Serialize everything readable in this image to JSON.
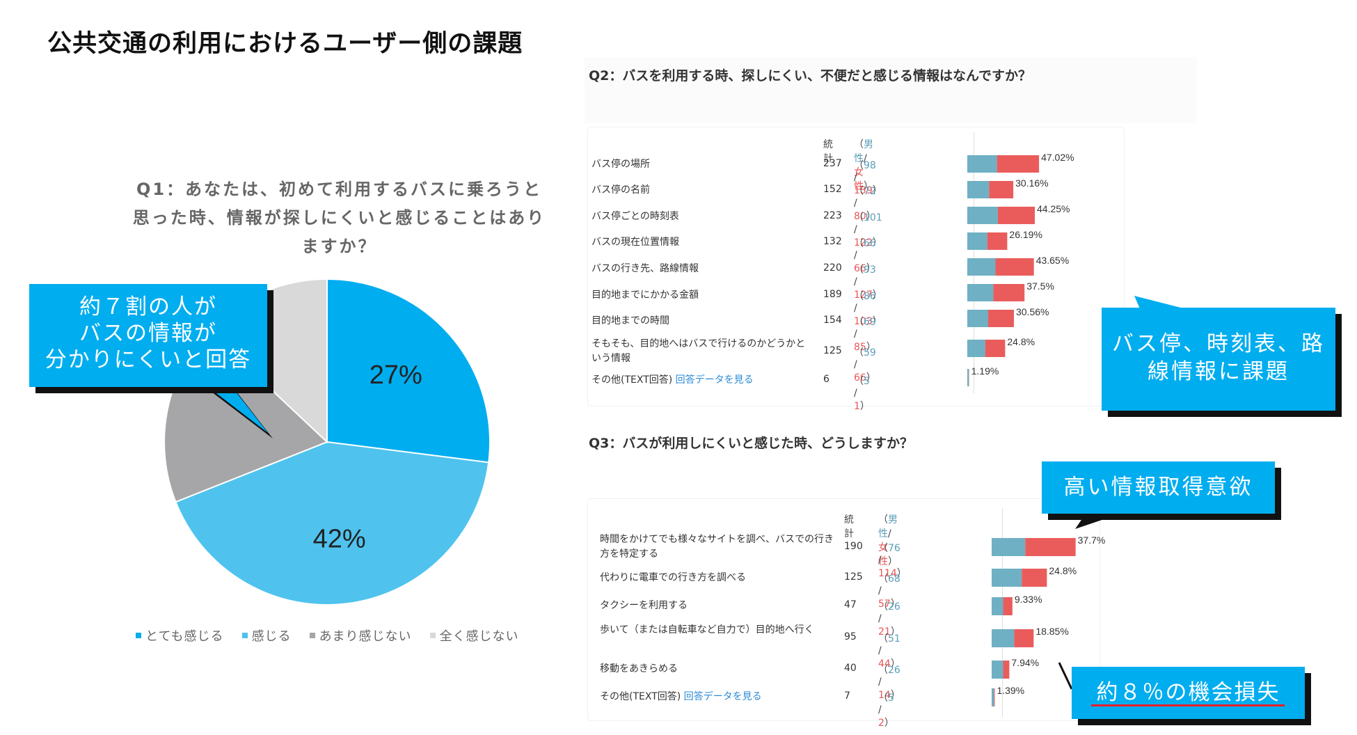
{
  "page": {
    "title": "公共交通の利用におけるユーザー側の課題"
  },
  "q1": {
    "question": "Q1：あなたは、初めて利用するバスに乗ろうと思った時、情報が探しにくいと感じることはありますか？",
    "legend": [
      "とても感じる",
      "感じる",
      "あまり感じない",
      "全く感じない"
    ]
  },
  "q2": {
    "question": "Q2：バスを利用する時、探しにくい、不便だと感じる情報はなんですか？",
    "header": {
      "count": "統計",
      "gender_open": "（",
      "male": "男性",
      "slash": "/",
      "female": "女性",
      "gender_close": "）"
    },
    "rows": [
      {
        "label": "バス停の場所",
        "count": "237",
        "male": "98",
        "female": "139",
        "pct": "47.02%"
      },
      {
        "label": "バス停の名前",
        "count": "152",
        "male": "72",
        "female": "80",
        "pct": "30.16%"
      },
      {
        "label": "バス停ごとの時刻表",
        "count": "223",
        "male": "101",
        "female": "122",
        "pct": "44.25%"
      },
      {
        "label": "バスの現在位置情報",
        "count": "132",
        "male": "66",
        "female": "66",
        "pct": "26.19%"
      },
      {
        "label": "バスの行き先、路線情報",
        "count": "220",
        "male": "93",
        "female": "127",
        "pct": "43.65%"
      },
      {
        "label": "目的地までにかかる金額",
        "count": "189",
        "male": "86",
        "female": "103",
        "pct": "37.5%"
      },
      {
        "label": "目的地までの時間",
        "count": "154",
        "male": "69",
        "female": "85",
        "pct": "30.56%"
      },
      {
        "label": "そもそも、目的地へはバスで行けるのかどうかという情報",
        "count": "125",
        "male": "59",
        "female": "66",
        "pct": "24.8%"
      },
      {
        "label": "その他(TEXT回答)",
        "link": "回答データを見る",
        "count": "6",
        "male": "5",
        "female": "1",
        "pct": "1.19%"
      }
    ]
  },
  "q3": {
    "question": "Q3：バスが利用しにくいと感じた時、どうしますか？",
    "header": {
      "count": "統計",
      "gender_open": "（",
      "male": "男性",
      "slash": "/",
      "female": "女性",
      "gender_close": "）"
    },
    "rows": [
      {
        "label": "時間をかけてでも様々なサイトを調べ、バスでの行き方を特定する",
        "count": "190",
        "male": "76",
        "female": "114",
        "pct": "37.7%"
      },
      {
        "label": "代わりに電車での行き方を調べる",
        "count": "125",
        "male": "68",
        "female": "57",
        "pct": "24.8%"
      },
      {
        "label": "タクシーを利用する",
        "count": "47",
        "male": "26",
        "female": "21",
        "pct": "9.33%"
      },
      {
        "label": "歩いて（または自転車など自力で）目的地へ行く",
        "count": "95",
        "male": "51",
        "female": "44",
        "pct": "18.85%"
      },
      {
        "label": "移動をあきらめる",
        "count": "40",
        "male": "26",
        "female": "14",
        "pct": "7.94%"
      },
      {
        "label": "その他(TEXT回答)",
        "link": "回答データを見る",
        "count": "7",
        "male": "5",
        "female": "2",
        "pct": "1.39%"
      }
    ]
  },
  "callouts": {
    "seventy_percent": "約７割の人が\nバスの情報が\n分かりにくいと回答",
    "bus_stop": "バス停、時刻表、路\n線情報に課題",
    "high_motivation": "高い情報取得意欲",
    "loss": "約８％の機会損失"
  },
  "colors": {
    "male_bar": "#6fb0c4",
    "female_bar": "#ea5c5c",
    "callout": "#00adef",
    "pie_very": "#00adef",
    "pie_feel": "#4fc3ee",
    "pie_notmuch": "#a6a6a8",
    "pie_none": "#d9d9d9"
  },
  "chart_data": [
    {
      "type": "pie",
      "title": "Q1：あなたは、初めて利用するバスに乗ろうと思った時、情報が探しにくいと感じることはありますか？",
      "categories": [
        "とても感じる",
        "感じる",
        "あまり感じない",
        "全く感じない"
      ],
      "values": [
        27,
        42,
        18,
        13
      ],
      "labels": [
        "27%",
        "42%",
        "",
        ""
      ]
    },
    {
      "type": "bar",
      "title": "Q2：バスを利用する時、探しにくい、不便だと感じる情報はなんですか？",
      "categories": [
        "バス停の場所",
        "バス停の名前",
        "バス停ごとの時刻表",
        "バスの現在位置情報",
        "バスの行き先、路線情報",
        "目的地までにかかる金額",
        "目的地までの時間",
        "そもそも、目的地へはバスで行けるのかどうかという情報",
        "その他(TEXT回答)"
      ],
      "series": [
        {
          "name": "男性",
          "values": [
            98,
            72,
            101,
            66,
            93,
            86,
            69,
            59,
            5
          ]
        },
        {
          "name": "女性",
          "values": [
            139,
            80,
            122,
            66,
            127,
            103,
            85,
            66,
            1
          ]
        }
      ],
      "total": [
        237,
        152,
        223,
        132,
        220,
        189,
        154,
        125,
        6
      ],
      "percent": [
        47.02,
        30.16,
        44.25,
        26.19,
        43.65,
        37.5,
        30.56,
        24.8,
        1.19
      ]
    },
    {
      "type": "bar",
      "title": "Q3：バスが利用しにくいと感じた時、どうしますか？",
      "categories": [
        "時間をかけてでも様々なサイトを調べ、バスでの行き方を特定する",
        "代わりに電車での行き方を調べる",
        "タクシーを利用する",
        "歩いて（または自転車など自力で）目的地へ行く",
        "移動をあきらめる",
        "その他(TEXT回答)"
      ],
      "series": [
        {
          "name": "男性",
          "values": [
            76,
            68,
            26,
            51,
            26,
            5
          ]
        },
        {
          "name": "女性",
          "values": [
            114,
            57,
            21,
            44,
            14,
            2
          ]
        }
      ],
      "total": [
        190,
        125,
        47,
        95,
        40,
        7
      ],
      "percent": [
        37.7,
        24.8,
        9.33,
        18.85,
        7.94,
        1.39
      ]
    }
  ]
}
